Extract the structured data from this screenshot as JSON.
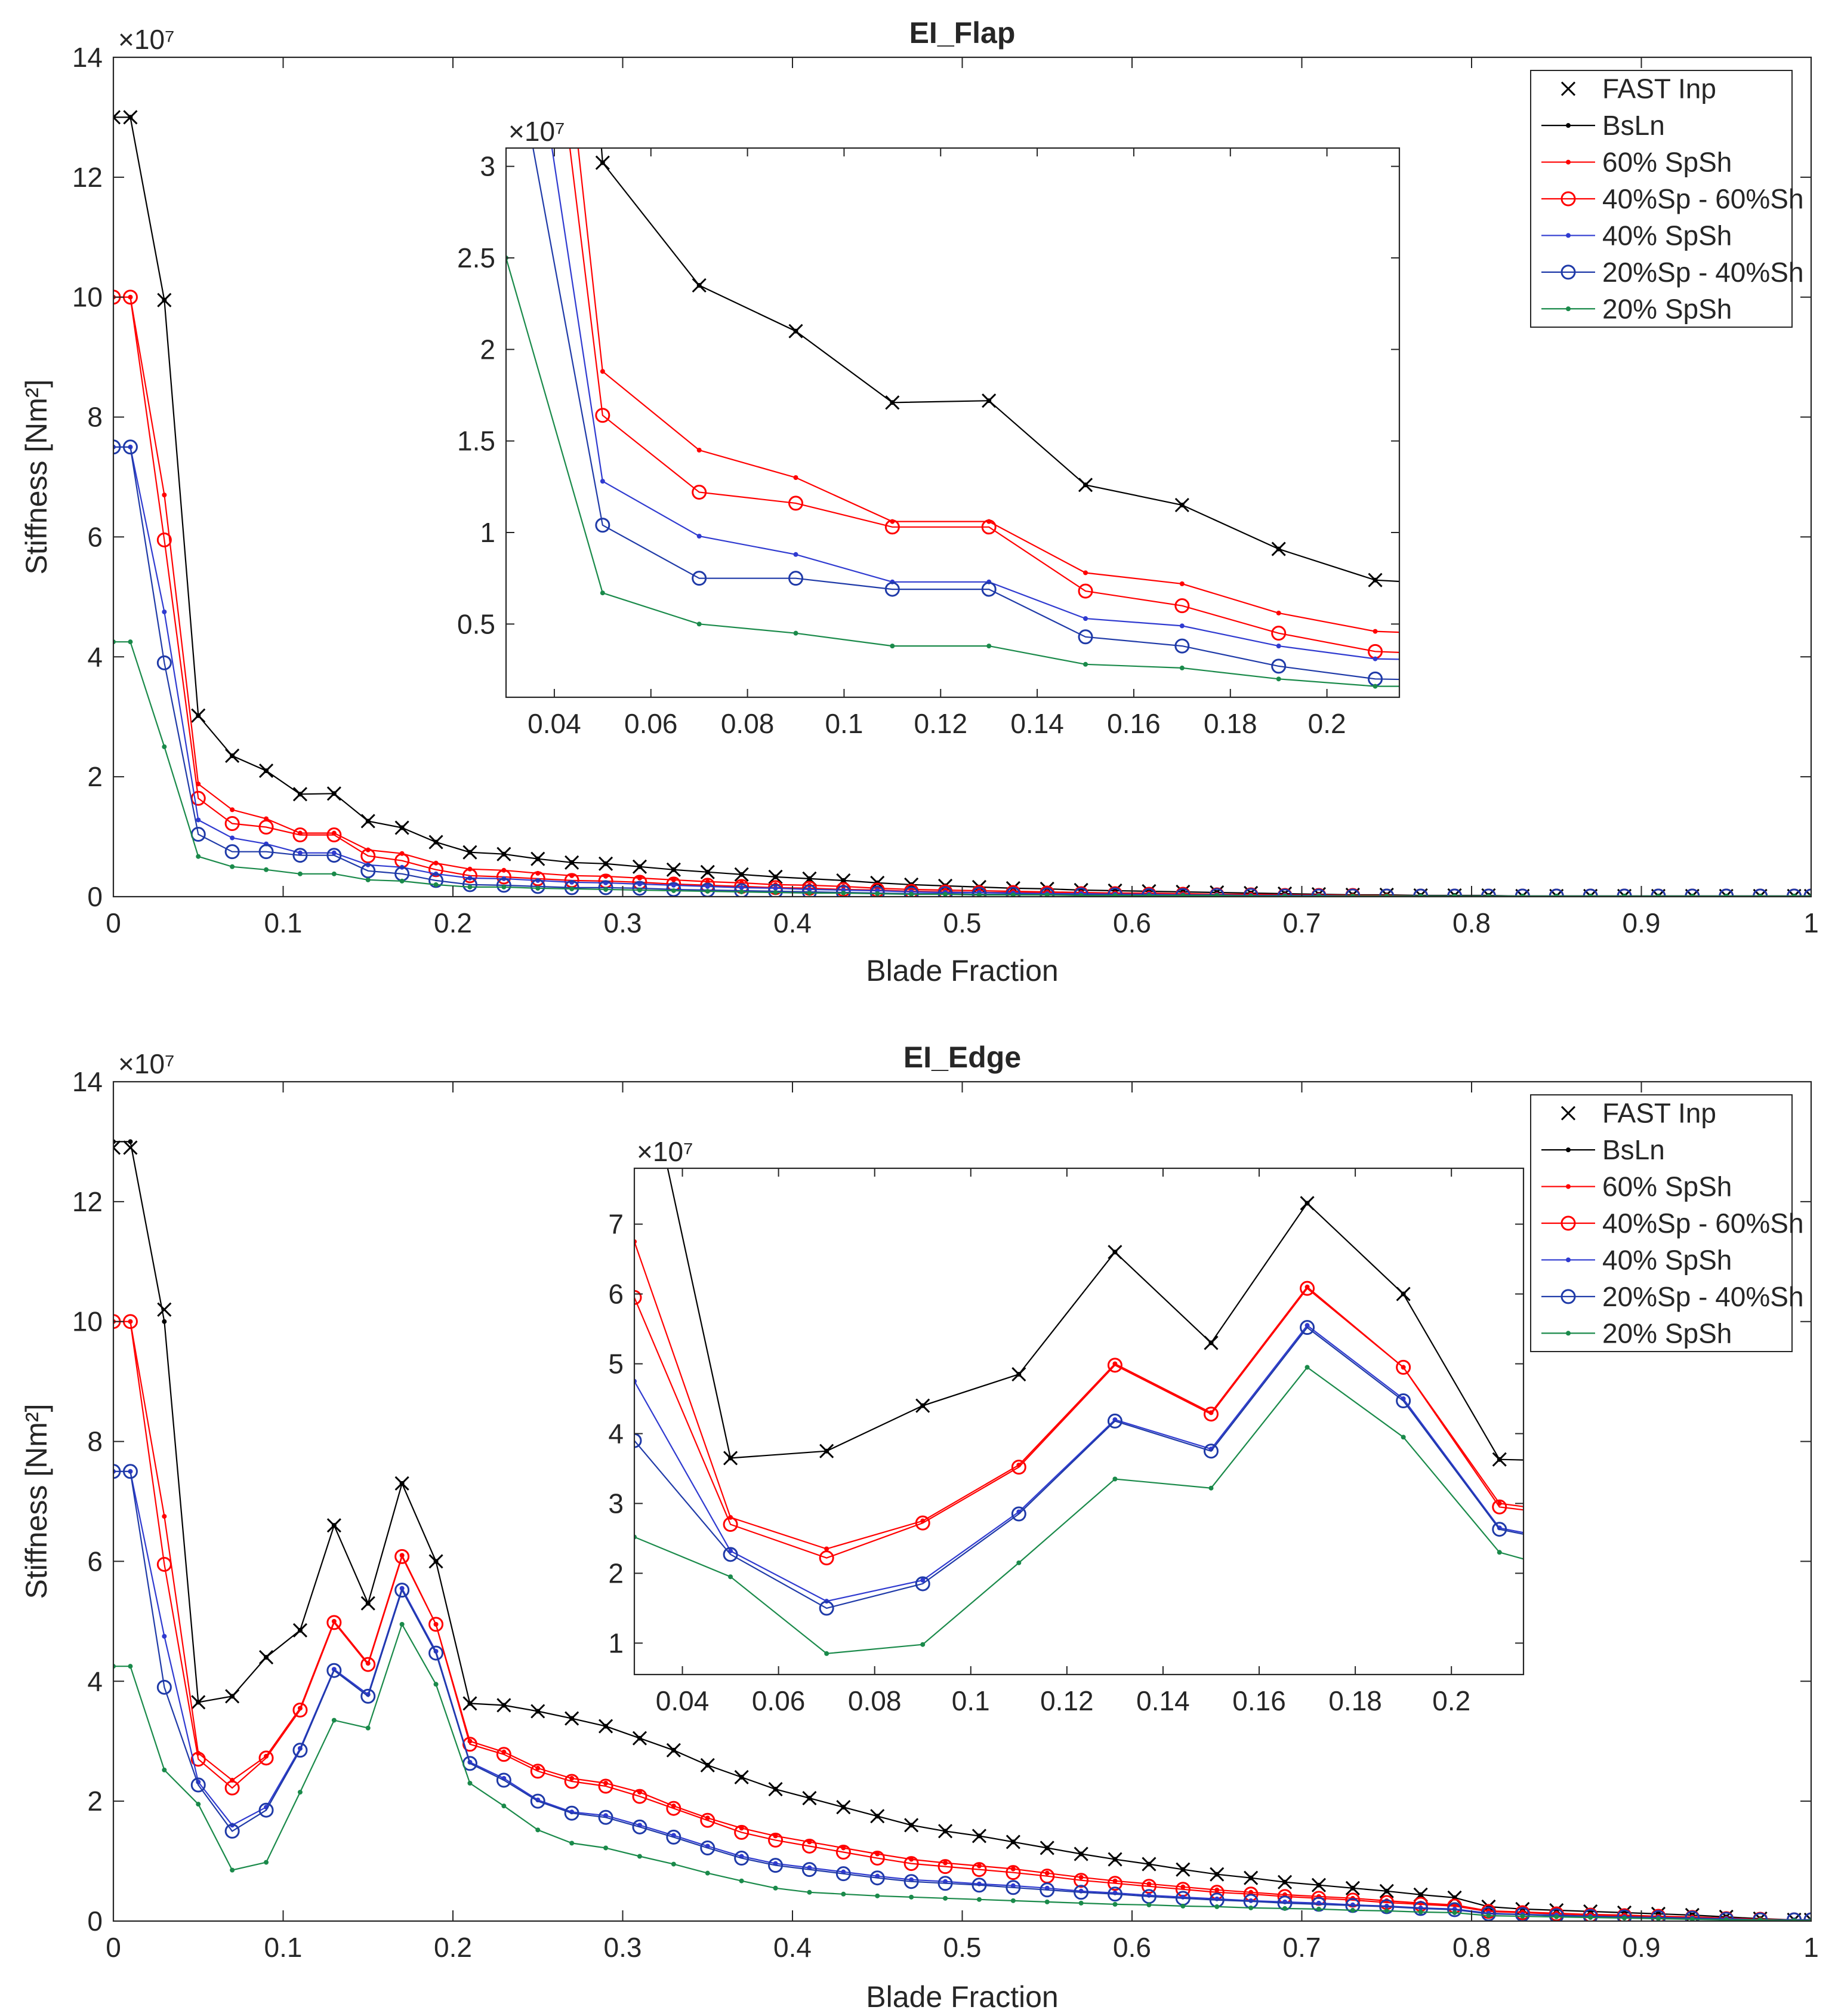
{
  "series_styles": [
    {
      "name": "FAST Inp",
      "color": "#000000",
      "line": false,
      "marker": "x"
    },
    {
      "name": "BsLn",
      "color": "#000000",
      "line": true,
      "marker": "dot"
    },
    {
      "name": "60% SpSh",
      "color": "#ff0000",
      "line": true,
      "marker": "dot"
    },
    {
      "name": "40%Sp - 60%Sh",
      "color": "#ff0000",
      "line": true,
      "marker": "circle"
    },
    {
      "name": "40% SpSh",
      "color": "#2f3ad0",
      "line": true,
      "marker": "dot"
    },
    {
      "name": "20%Sp - 40%Sh",
      "color": "#1f3aa8",
      "line": true,
      "marker": "circle"
    },
    {
      "name": "20% SpSh",
      "color": "#1a8a4a",
      "line": true,
      "marker": "dot"
    }
  ],
  "chart_data": [
    {
      "type": "line",
      "title": "EI_Flap",
      "xlabel": "Blade Fraction",
      "ylabel": "Stiffness [Nm²]",
      "y_multiplier": "×10⁷",
      "xlim": [
        0,
        1
      ],
      "ylim": [
        0,
        14
      ],
      "xticks": [
        "0",
        "0.1",
        "0.2",
        "0.3",
        "0.4",
        "0.5",
        "0.6",
        "0.7",
        "0.8",
        "0.9",
        "1"
      ],
      "yticks": [
        "0",
        "2",
        "4",
        "6",
        "8",
        "10",
        "12",
        "14"
      ],
      "legend_position": "top-right",
      "x": [
        0,
        0.01,
        0.03,
        0.05,
        0.07,
        0.09,
        0.11,
        0.13,
        0.15,
        0.17,
        0.19,
        0.21,
        0.23,
        0.25,
        0.27,
        0.29,
        0.31,
        0.33,
        0.35,
        0.37,
        0.39,
        0.41,
        0.43,
        0.45,
        0.47,
        0.49,
        0.51,
        0.53,
        0.55,
        0.57,
        0.59,
        0.61,
        0.63,
        0.65,
        0.67,
        0.69,
        0.71,
        0.73,
        0.75,
        0.77,
        0.79,
        0.81,
        0.83,
        0.85,
        0.87,
        0.89,
        0.91,
        0.93,
        0.95,
        0.97,
        0.99,
        1.0
      ],
      "series": [
        {
          "name": "FAST Inp",
          "values": [
            13.0,
            13.0,
            9.95,
            3.02,
            2.35,
            2.1,
            1.71,
            1.72,
            1.26,
            1.15,
            0.91,
            0.74,
            0.71,
            0.63,
            0.57,
            0.55,
            0.5,
            0.45,
            0.41,
            0.37,
            0.33,
            0.3,
            0.27,
            0.23,
            0.2,
            0.18,
            0.16,
            0.14,
            0.13,
            0.11,
            0.1,
            0.09,
            0.08,
            0.07,
            0.06,
            0.05,
            0.04,
            0.03,
            0.03,
            0.02,
            0.02,
            0.02,
            0.01,
            0.01,
            0.01,
            0.01,
            0.01,
            0.01,
            0.01,
            0.01,
            0.01,
            0.01
          ]
        },
        {
          "name": "BsLn",
          "values": [
            13.0,
            13.0,
            9.95,
            3.02,
            2.35,
            2.1,
            1.71,
            1.72,
            1.26,
            1.15,
            0.91,
            0.74,
            0.71,
            0.63,
            0.57,
            0.55,
            0.5,
            0.45,
            0.41,
            0.37,
            0.33,
            0.3,
            0.27,
            0.23,
            0.2,
            0.18,
            0.16,
            0.14,
            0.13,
            0.11,
            0.1,
            0.09,
            0.08,
            0.07,
            0.06,
            0.05,
            0.04,
            0.03,
            0.03,
            0.02,
            0.02,
            0.02,
            0.01,
            0.01,
            0.01,
            0.01,
            0.01,
            0.01,
            0.01,
            0.01,
            0.01,
            0.01
          ]
        },
        {
          "name": "60% SpSh",
          "values": [
            10.0,
            10.0,
            6.7,
            1.88,
            1.45,
            1.3,
            1.06,
            1.06,
            0.78,
            0.72,
            0.56,
            0.46,
            0.44,
            0.39,
            0.35,
            0.34,
            0.31,
            0.28,
            0.25,
            0.23,
            0.2,
            0.19,
            0.17,
            0.14,
            0.12,
            0.11,
            0.1,
            0.09,
            0.08,
            0.07,
            0.06,
            0.06,
            0.05,
            0.04,
            0.04,
            0.03,
            0.03,
            0.02,
            0.02,
            0.01,
            0.01,
            0.01,
            0.01,
            0.01,
            0.01,
            0.01,
            0.01,
            0.01,
            0.01,
            0.01,
            0.01,
            0.01
          ]
        },
        {
          "name": "40%Sp - 60%Sh",
          "values": [
            10.0,
            10.0,
            5.95,
            1.64,
            1.22,
            1.16,
            1.03,
            1.03,
            0.68,
            0.6,
            0.45,
            0.35,
            0.33,
            0.3,
            0.27,
            0.26,
            0.24,
            0.21,
            0.19,
            0.17,
            0.15,
            0.14,
            0.12,
            0.11,
            0.09,
            0.08,
            0.07,
            0.07,
            0.06,
            0.05,
            0.05,
            0.04,
            0.04,
            0.03,
            0.03,
            0.02,
            0.02,
            0.02,
            0.01,
            0.01,
            0.01,
            0.01,
            0.01,
            0.01,
            0.01,
            0.01,
            0.01,
            0.01,
            0.01,
            0.01,
            0.01,
            0.01
          ]
        },
        {
          "name": "40% SpSh",
          "values": [
            7.5,
            7.5,
            4.75,
            1.28,
            0.98,
            0.88,
            0.73,
            0.73,
            0.53,
            0.49,
            0.38,
            0.31,
            0.3,
            0.27,
            0.24,
            0.23,
            0.21,
            0.19,
            0.17,
            0.15,
            0.14,
            0.12,
            0.11,
            0.1,
            0.08,
            0.07,
            0.07,
            0.06,
            0.05,
            0.05,
            0.04,
            0.04,
            0.03,
            0.03,
            0.02,
            0.02,
            0.02,
            0.01,
            0.01,
            0.01,
            0.01,
            0.01,
            0.01,
            0.01,
            0.01,
            0.01,
            0.01,
            0.01,
            0.01,
            0.01,
            0.01,
            0.01
          ]
        },
        {
          "name": "20%Sp - 40%Sh",
          "values": [
            7.5,
            7.5,
            3.9,
            1.04,
            0.75,
            0.75,
            0.69,
            0.69,
            0.43,
            0.38,
            0.27,
            0.2,
            0.19,
            0.17,
            0.15,
            0.15,
            0.14,
            0.12,
            0.11,
            0.1,
            0.09,
            0.08,
            0.07,
            0.06,
            0.05,
            0.05,
            0.04,
            0.04,
            0.03,
            0.03,
            0.03,
            0.02,
            0.02,
            0.02,
            0.02,
            0.01,
            0.01,
            0.01,
            0.01,
            0.01,
            0.01,
            0.01,
            0.01,
            0.01,
            0.01,
            0.01,
            0.01,
            0.01,
            0.01,
            0.01,
            0.01,
            0.01
          ]
        },
        {
          "name": "20% SpSh",
          "values": [
            4.25,
            4.25,
            2.5,
            0.67,
            0.5,
            0.45,
            0.38,
            0.38,
            0.28,
            0.26,
            0.2,
            0.16,
            0.16,
            0.14,
            0.13,
            0.12,
            0.11,
            0.1,
            0.09,
            0.08,
            0.07,
            0.06,
            0.06,
            0.05,
            0.04,
            0.04,
            0.03,
            0.03,
            0.03,
            0.02,
            0.02,
            0.02,
            0.02,
            0.02,
            0.01,
            0.01,
            0.01,
            0.01,
            0.01,
            0.01,
            0.01,
            0.01,
            0.01,
            0.01,
            0.01,
            0.01,
            0.01,
            0.01,
            0.01,
            0.01,
            0.01,
            0.01
          ]
        }
      ],
      "inset": {
        "xlim": [
          0.03,
          0.215
        ],
        "ylim": [
          0.1,
          3.1
        ],
        "xticks": [
          "0.04",
          "0.06",
          "0.08",
          "0.1",
          "0.12",
          "0.14",
          "0.16",
          "0.18",
          "0.2"
        ],
        "yticks": [
          "0.5",
          "1",
          "1.5",
          "2",
          "2.5",
          "3"
        ],
        "y_multiplier": "×10⁷"
      }
    },
    {
      "type": "line",
      "title": "EI_Edge",
      "xlabel": "Blade Fraction",
      "ylabel": "Stiffness [Nm²]",
      "y_multiplier": "×10⁷",
      "xlim": [
        0,
        1
      ],
      "ylim": [
        0,
        14
      ],
      "xticks": [
        "0",
        "0.1",
        "0.2",
        "0.3",
        "0.4",
        "0.5",
        "0.6",
        "0.7",
        "0.8",
        "0.9",
        "1"
      ],
      "yticks": [
        "0",
        "2",
        "4",
        "6",
        "8",
        "10",
        "12",
        "14"
      ],
      "legend_position": "top-right",
      "x": [
        0,
        0.01,
        0.03,
        0.05,
        0.07,
        0.09,
        0.11,
        0.13,
        0.15,
        0.17,
        0.19,
        0.21,
        0.23,
        0.25,
        0.27,
        0.29,
        0.31,
        0.33,
        0.35,
        0.37,
        0.39,
        0.41,
        0.43,
        0.45,
        0.47,
        0.49,
        0.51,
        0.53,
        0.55,
        0.57,
        0.59,
        0.61,
        0.63,
        0.65,
        0.67,
        0.69,
        0.71,
        0.73,
        0.75,
        0.77,
        0.79,
        0.81,
        0.83,
        0.85,
        0.87,
        0.89,
        0.91,
        0.93,
        0.95,
        0.97,
        0.99,
        1.0
      ],
      "series": [
        {
          "name": "FAST Inp",
          "values": [
            12.9,
            12.9,
            10.2,
            3.65,
            3.75,
            4.4,
            4.85,
            6.6,
            5.3,
            7.3,
            6.0,
            3.63,
            3.6,
            3.5,
            3.38,
            3.25,
            3.05,
            2.85,
            2.6,
            2.4,
            2.2,
            2.05,
            1.9,
            1.75,
            1.6,
            1.5,
            1.42,
            1.32,
            1.22,
            1.12,
            1.03,
            0.95,
            0.86,
            0.78,
            0.72,
            0.65,
            0.6,
            0.55,
            0.5,
            0.44,
            0.39,
            0.24,
            0.2,
            0.18,
            0.16,
            0.14,
            0.12,
            0.1,
            0.07,
            0.04,
            0.02,
            0.02
          ]
        },
        {
          "name": "BsLn",
          "values": [
            13.0,
            13.0,
            10.0,
            3.65,
            3.75,
            4.4,
            4.85,
            6.6,
            5.3,
            7.3,
            6.0,
            3.63,
            3.6,
            3.5,
            3.38,
            3.25,
            3.05,
            2.85,
            2.6,
            2.4,
            2.2,
            2.05,
            1.9,
            1.75,
            1.6,
            1.5,
            1.42,
            1.32,
            1.22,
            1.12,
            1.03,
            0.95,
            0.86,
            0.78,
            0.72,
            0.65,
            0.6,
            0.55,
            0.5,
            0.44,
            0.39,
            0.24,
            0.2,
            0.18,
            0.16,
            0.14,
            0.12,
            0.1,
            0.07,
            0.04,
            0.02,
            0.02
          ]
        },
        {
          "name": "60% SpSh",
          "values": [
            10.0,
            10.0,
            6.75,
            2.8,
            2.35,
            2.75,
            3.55,
            5.0,
            4.3,
            6.1,
            4.95,
            3.0,
            2.82,
            2.55,
            2.38,
            2.3,
            2.15,
            1.92,
            1.72,
            1.55,
            1.42,
            1.32,
            1.22,
            1.12,
            1.03,
            0.97,
            0.92,
            0.87,
            0.8,
            0.73,
            0.67,
            0.62,
            0.57,
            0.52,
            0.48,
            0.44,
            0.41,
            0.38,
            0.34,
            0.3,
            0.27,
            0.17,
            0.15,
            0.13,
            0.11,
            0.1,
            0.08,
            0.07,
            0.05,
            0.03,
            0.02,
            0.02
          ]
        },
        {
          "name": "40%Sp - 60%Sh",
          "values": [
            10.0,
            10.0,
            5.95,
            2.7,
            2.22,
            2.72,
            3.52,
            4.98,
            4.28,
            6.08,
            4.95,
            2.95,
            2.78,
            2.5,
            2.33,
            2.25,
            2.08,
            1.88,
            1.68,
            1.48,
            1.35,
            1.25,
            1.15,
            1.05,
            0.96,
            0.91,
            0.86,
            0.81,
            0.75,
            0.68,
            0.63,
            0.58,
            0.53,
            0.48,
            0.45,
            0.41,
            0.38,
            0.35,
            0.31,
            0.28,
            0.25,
            0.16,
            0.14,
            0.12,
            0.1,
            0.09,
            0.08,
            0.06,
            0.04,
            0.03,
            0.02,
            0.02
          ]
        },
        {
          "name": "40% SpSh",
          "values": [
            7.5,
            7.5,
            4.75,
            2.32,
            1.6,
            1.9,
            2.88,
            4.2,
            3.78,
            5.55,
            4.5,
            2.65,
            2.38,
            2.02,
            1.82,
            1.76,
            1.6,
            1.43,
            1.25,
            1.08,
            0.96,
            0.89,
            0.82,
            0.75,
            0.69,
            0.66,
            0.62,
            0.59,
            0.55,
            0.5,
            0.47,
            0.43,
            0.4,
            0.37,
            0.34,
            0.32,
            0.3,
            0.27,
            0.25,
            0.22,
            0.2,
            0.13,
            0.11,
            0.1,
            0.08,
            0.07,
            0.06,
            0.05,
            0.04,
            0.02,
            0.02,
            0.02
          ]
        },
        {
          "name": "20%Sp - 40%Sh",
          "values": [
            7.5,
            7.5,
            3.9,
            2.27,
            1.5,
            1.85,
            2.85,
            4.18,
            3.75,
            5.52,
            4.47,
            2.63,
            2.35,
            2.0,
            1.8,
            1.73,
            1.57,
            1.4,
            1.22,
            1.05,
            0.93,
            0.86,
            0.79,
            0.72,
            0.66,
            0.63,
            0.6,
            0.56,
            0.52,
            0.48,
            0.45,
            0.41,
            0.38,
            0.35,
            0.33,
            0.3,
            0.28,
            0.26,
            0.24,
            0.21,
            0.19,
            0.12,
            0.11,
            0.09,
            0.08,
            0.07,
            0.06,
            0.05,
            0.03,
            0.02,
            0.02,
            0.02
          ]
        },
        {
          "name": "20% SpSh",
          "values": [
            4.25,
            4.25,
            2.52,
            1.95,
            0.85,
            0.98,
            2.15,
            3.35,
            3.22,
            4.95,
            3.95,
            2.3,
            1.92,
            1.52,
            1.3,
            1.22,
            1.08,
            0.95,
            0.8,
            0.67,
            0.55,
            0.48,
            0.45,
            0.42,
            0.4,
            0.38,
            0.36,
            0.34,
            0.32,
            0.3,
            0.28,
            0.27,
            0.25,
            0.24,
            0.22,
            0.21,
            0.2,
            0.18,
            0.17,
            0.15,
            0.14,
            0.09,
            0.08,
            0.07,
            0.06,
            0.05,
            0.04,
            0.03,
            0.02,
            0.02,
            0.01,
            0.01
          ]
        }
      ],
      "inset": {
        "xlim": [
          0.03,
          0.215
        ],
        "ylim": [
          0.55,
          7.8
        ],
        "xticks": [
          "0.04",
          "0.06",
          "0.08",
          "0.1",
          "0.12",
          "0.14",
          "0.16",
          "0.18",
          "0.2"
        ],
        "yticks": [
          "1",
          "2",
          "3",
          "4",
          "5",
          "6",
          "7"
        ],
        "y_multiplier": "×10⁷"
      }
    }
  ]
}
